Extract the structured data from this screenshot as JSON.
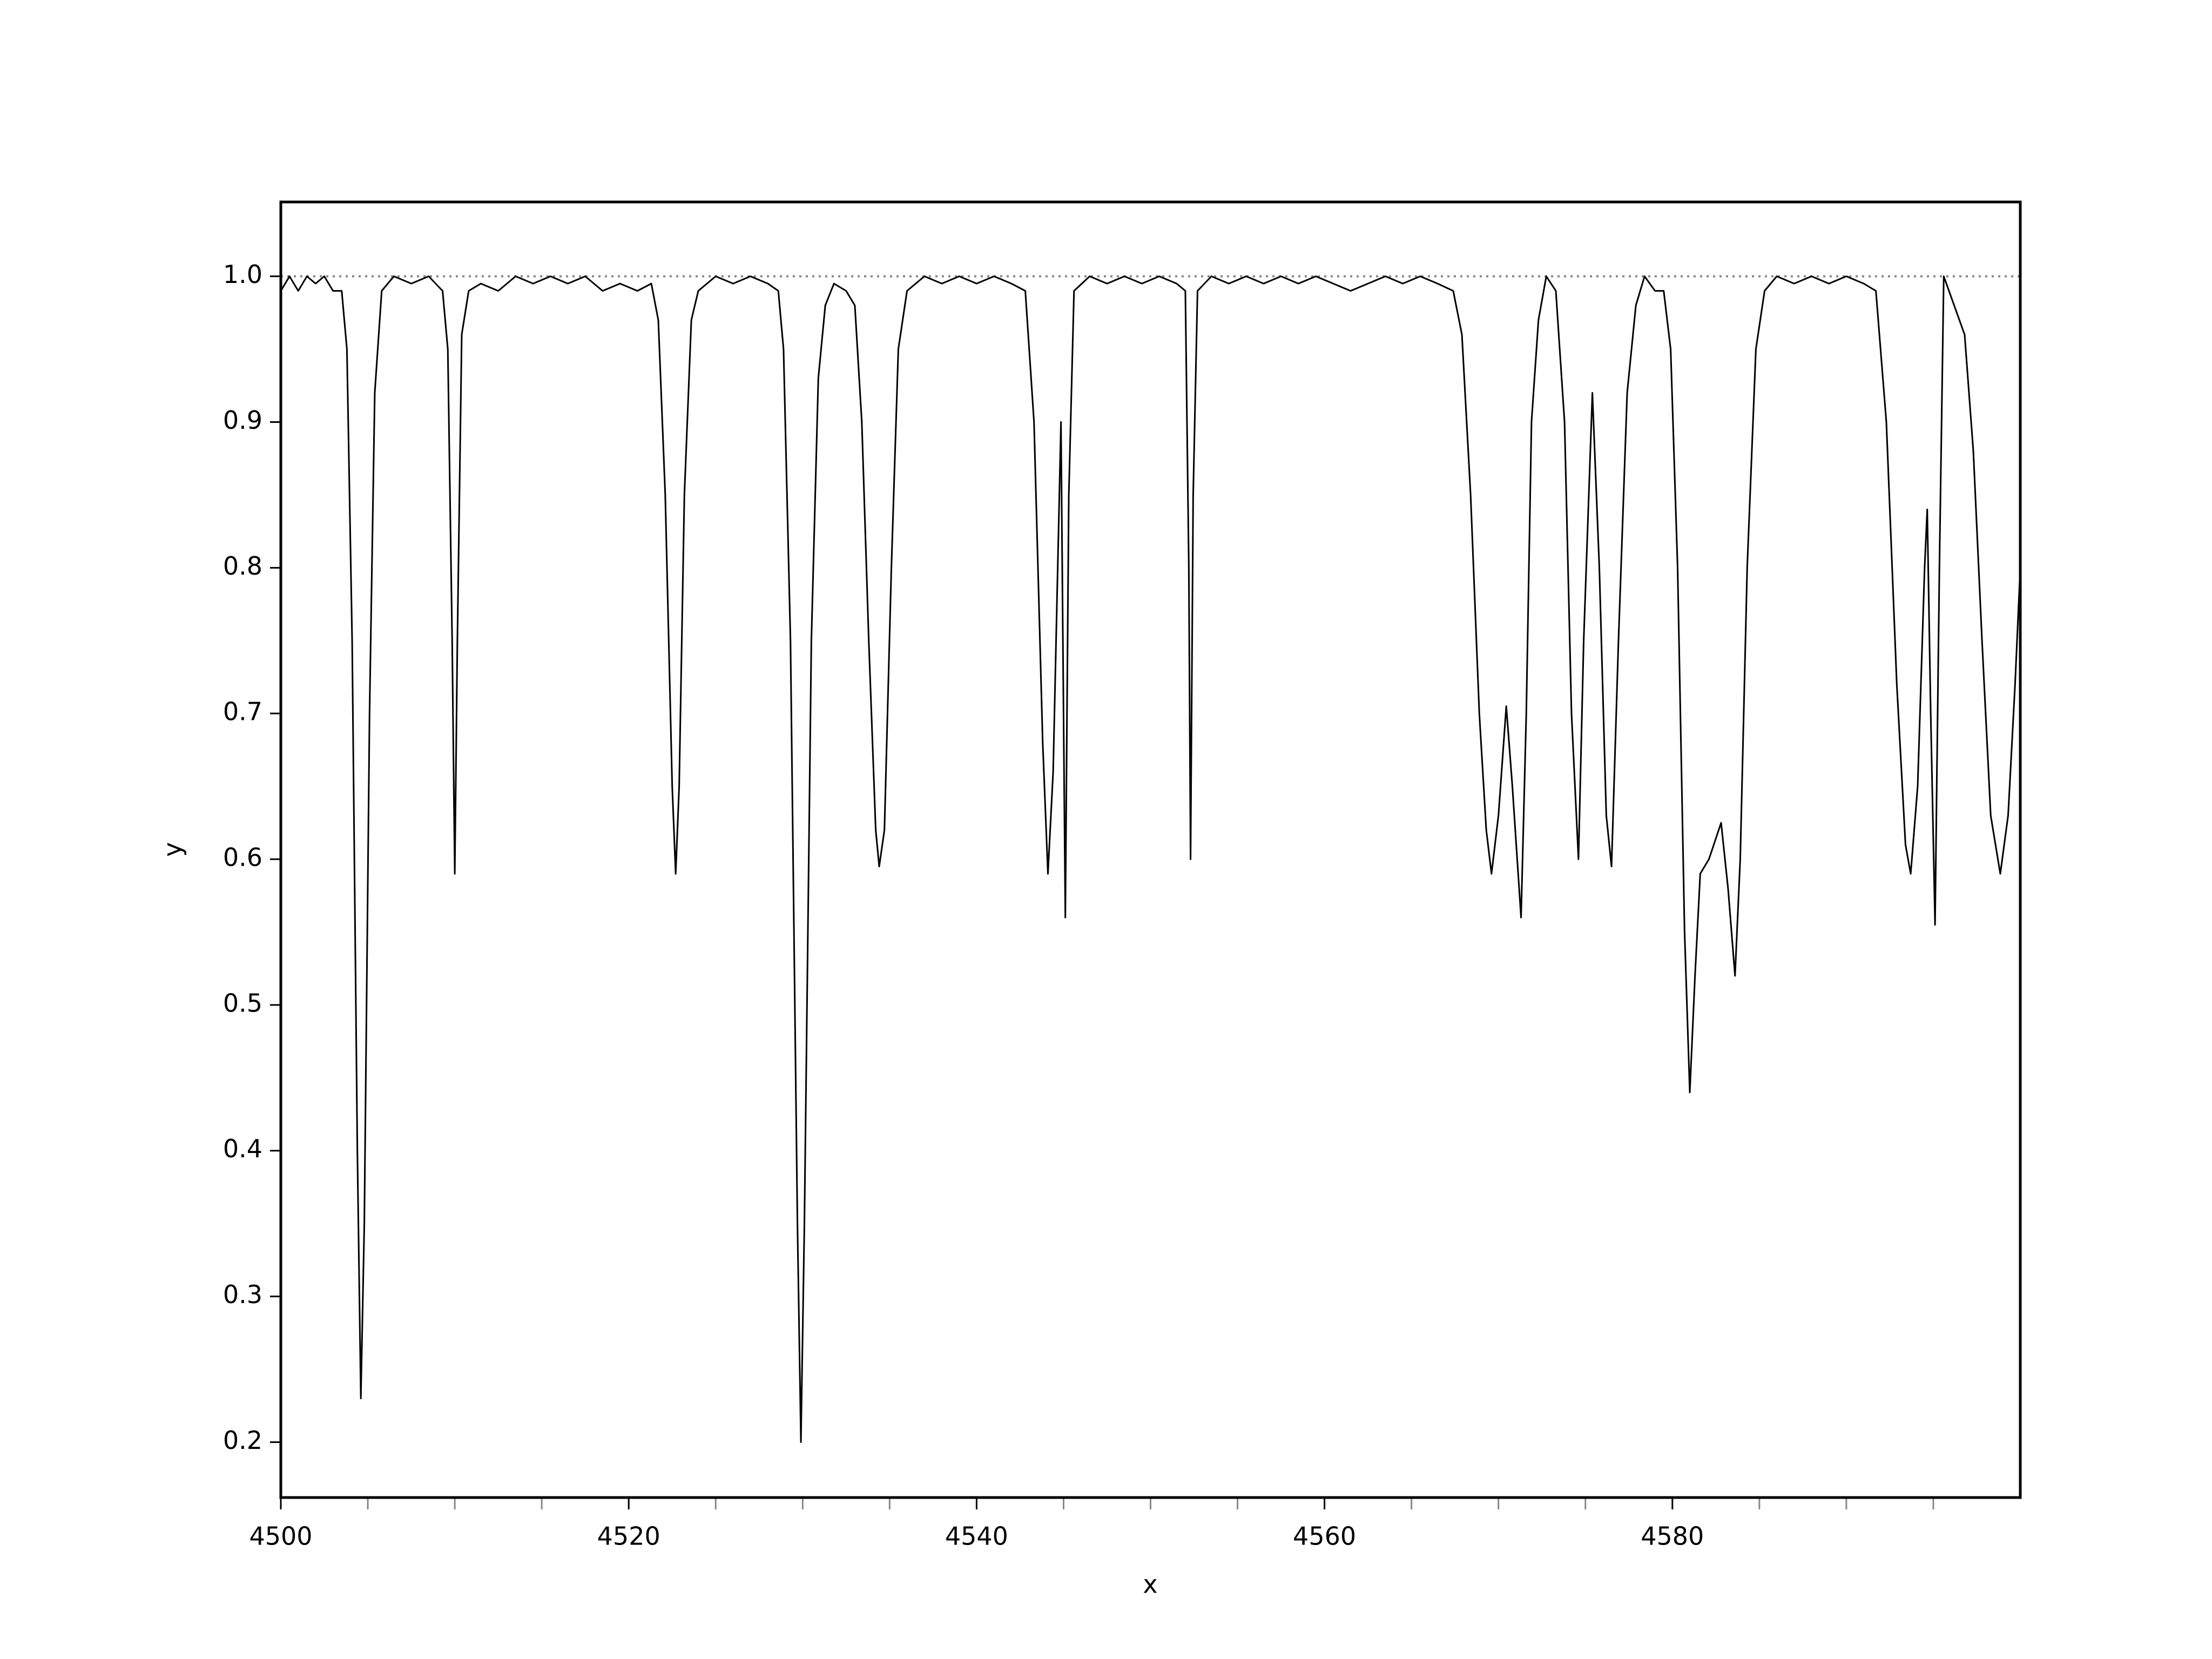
{
  "chart_data": {
    "type": "line",
    "xlabel": "x",
    "ylabel": "y",
    "color": "#000000",
    "xlim": [
      4500,
      4600
    ],
    "ylim": [
      0.162,
      1.051
    ],
    "xticks": [
      4500,
      4520,
      4540,
      4560,
      4580
    ],
    "x_minor_ticks": [
      4505,
      4510,
      4515,
      4525,
      4530,
      4535,
      4545,
      4550,
      4555,
      4565,
      4570,
      4575,
      4585,
      4590,
      4595
    ],
    "yticks": [
      0.2,
      0.3,
      0.4,
      0.5,
      0.6,
      0.7,
      0.8,
      0.9,
      {
        "value": 1,
        "label": "1.0"
      }
    ],
    "reference_line": {
      "value": 1,
      "color": "#888888"
    },
    "x": [
      4500.0,
      4500.5,
      4501,
      4501.5,
      4502,
      4502.5,
      4503,
      4503.5,
      4503.8,
      4504.1,
      4504.4,
      4504.6,
      4504.8,
      4505.1,
      4505.4,
      4505.8,
      4506.5,
      4507.5,
      4508.5,
      4509.3,
      4509.6,
      4509.85,
      4510.0,
      4510.15,
      4510.4,
      4510.8,
      4511.5,
      4512.5,
      4513.5,
      4514.5,
      4515.5,
      4516.5,
      4517.5,
      4518.5,
      4519.5,
      4520.5,
      4521.3,
      4521.7,
      4522.1,
      4522.5,
      4522.7,
      4522.9,
      4523.2,
      4523.6,
      4524.0,
      4525,
      4526,
      4527,
      4528,
      4528.6,
      4528.9,
      4529.3,
      4529.7,
      4529.9,
      4530.1,
      4530.5,
      4530.9,
      4531.3,
      4531.8,
      4532.5,
      4533.0,
      4533.4,
      4533.8,
      4534.2,
      4534.4,
      4534.7,
      4535.1,
      4535.5,
      4536.0,
      4537,
      4538,
      4539,
      4540,
      4541,
      4542,
      4542.8,
      4543.3,
      4543.8,
      4544.1,
      4544.4,
      4544.85,
      4545.1,
      4545.3,
      4545.6,
      4546.5,
      4547.5,
      4548.5,
      4549.5,
      4550.5,
      4551.5,
      4552.0,
      4552.2,
      4552.3,
      4552.45,
      4552.7,
      4553.5,
      4554.5,
      4555.5,
      4556.5,
      4557.5,
      4558.5,
      4559.5,
      4560.5,
      4561.5,
      4562.5,
      4563.5,
      4564.5,
      4565.5,
      4566.5,
      4567.4,
      4567.9,
      4568.4,
      4568.9,
      4569.3,
      4569.6,
      4570.0,
      4570.45,
      4570.8,
      4571.3,
      4571.6,
      4571.9,
      4572.3,
      4572.75,
      4573.3,
      4573.8,
      4574.2,
      4574.6,
      4574.9,
      4575.4,
      4575.8,
      4576.2,
      4576.5,
      4576.9,
      4577.4,
      4577.9,
      4578.4,
      4579.0,
      4579.5,
      4579.9,
      4580.3,
      4580.7,
      4581.0,
      4581.3,
      4581.6,
      4582.1,
      4582.8,
      4583.2,
      4583.6,
      4583.9,
      4584.3,
      4584.8,
      4585.3,
      4586,
      4587,
      4588,
      4589,
      4590,
      4591,
      4591.7,
      4592.3,
      4592.9,
      4593.4,
      4593.7,
      4594.1,
      4594.5,
      4594.65,
      4594.85,
      4595.1,
      4595.35,
      4595.6,
      4596.2,
      4596.8,
      4597.3,
      4597.8,
      4598.3,
      4598.85,
      4599.3,
      4599.7,
      4600.0
    ],
    "values": [
      0.99,
      1.0,
      0.99,
      1.0,
      0.995,
      1.0,
      0.99,
      0.99,
      0.95,
      0.75,
      0.4,
      0.23,
      0.35,
      0.7,
      0.92,
      0.99,
      1.0,
      0.995,
      1.0,
      0.99,
      0.95,
      0.75,
      0.59,
      0.75,
      0.96,
      0.99,
      0.995,
      0.99,
      1.0,
      0.995,
      1.0,
      0.995,
      1.0,
      0.99,
      0.995,
      0.99,
      0.995,
      0.97,
      0.85,
      0.65,
      0.59,
      0.65,
      0.85,
      0.97,
      0.99,
      1.0,
      0.995,
      1.0,
      0.995,
      0.99,
      0.95,
      0.75,
      0.35,
      0.2,
      0.35,
      0.75,
      0.93,
      0.98,
      0.995,
      0.99,
      0.98,
      0.9,
      0.75,
      0.62,
      0.595,
      0.62,
      0.8,
      0.95,
      0.99,
      1.0,
      0.995,
      1.0,
      0.995,
      1.0,
      0.995,
      0.99,
      0.9,
      0.68,
      0.59,
      0.66,
      0.9,
      0.56,
      0.85,
      0.99,
      1.0,
      0.995,
      1.0,
      0.995,
      1.0,
      0.995,
      0.99,
      0.8,
      0.6,
      0.85,
      0.99,
      1.0,
      0.995,
      1.0,
      0.995,
      1.0,
      0.995,
      1.0,
      0.995,
      0.99,
      0.995,
      1.0,
      0.995,
      1.0,
      0.995,
      0.99,
      0.96,
      0.85,
      0.7,
      0.62,
      0.59,
      0.63,
      0.705,
      0.65,
      0.56,
      0.7,
      0.9,
      0.97,
      1.0,
      0.99,
      0.9,
      0.7,
      0.6,
      0.75,
      0.92,
      0.8,
      0.63,
      0.595,
      0.75,
      0.92,
      0.98,
      1.0,
      0.99,
      0.99,
      0.95,
      0.8,
      0.55,
      0.44,
      0.52,
      0.59,
      0.6,
      0.625,
      0.58,
      0.52,
      0.6,
      0.8,
      0.95,
      0.99,
      1.0,
      0.995,
      1.0,
      0.995,
      1.0,
      0.995,
      0.99,
      0.9,
      0.72,
      0.61,
      0.59,
      0.65,
      0.8,
      0.84,
      0.7,
      0.555,
      0.8,
      1.0,
      0.98,
      0.96,
      0.88,
      0.75,
      0.63,
      0.59,
      0.63,
      0.72,
      0.8
    ]
  }
}
